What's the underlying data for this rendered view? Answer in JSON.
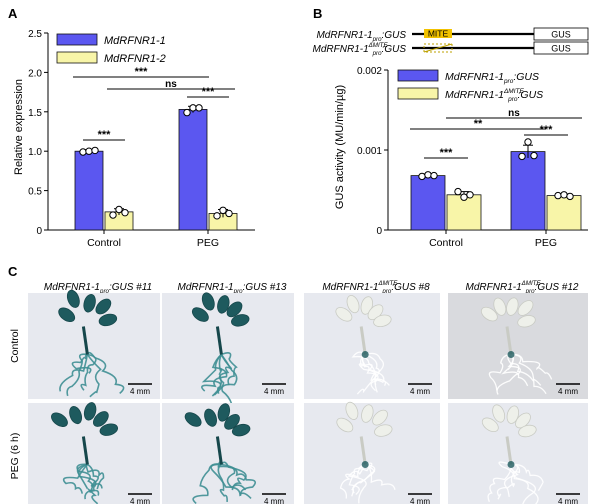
{
  "panels": {
    "a": {
      "label": "A",
      "chart_data": {
        "type": "bar",
        "categories": [
          "Control",
          "PEG"
        ],
        "series": [
          {
            "name": "MdRFNR1-1",
            "values": [
              1.0,
              1.53
            ],
            "errors": [
              0.02,
              0.04
            ],
            "replicates": [
              [
                0.99,
                1.0,
                1.01
              ],
              [
                1.49,
                1.55,
                1.55
              ]
            ]
          },
          {
            "name": "MdRFNR1-2",
            "values": [
              0.23,
              0.21
            ],
            "errors": [
              0.04,
              0.05
            ],
            "replicates": [
              [
                0.19,
                0.26,
                0.22
              ],
              [
                0.18,
                0.25,
                0.21
              ]
            ]
          }
        ],
        "ylabel": "Relative expression",
        "xlabel": "",
        "ylim": [
          0,
          2.5
        ],
        "yticks": [
          "0",
          "0.5",
          "1.0",
          "1.5",
          "2.0",
          "2.5"
        ],
        "legend_position": "top-left",
        "grid": false,
        "significance": [
          {
            "label": "***",
            "between": "Control MdRFNR1-1 vs Control MdRFNR1-2"
          },
          {
            "label": "***",
            "between": "PEG MdRFNR1-1 vs PEG MdRFNR1-2"
          },
          {
            "label": "***",
            "between": "Control MdRFNR1-1 vs PEG MdRFNR1-1"
          },
          {
            "label": "ns",
            "between": "Control MdRFNR1-2 vs PEG MdRFNR1-2"
          }
        ]
      }
    },
    "b": {
      "label": "B",
      "constructs": [
        {
          "name_main": "MdRFNR1-1",
          "sub": "pro",
          "sup": "",
          "suffix": ":GUS",
          "element": "MITE",
          "box": "GUS"
        },
        {
          "name_main": "MdRFNR1-1",
          "sub": "pro",
          "sup": "ΔMITE",
          "suffix": ":GUS",
          "element": "",
          "box": "GUS"
        }
      ],
      "chart_data": {
        "type": "bar",
        "categories": [
          "Control",
          "PEG"
        ],
        "series": [
          {
            "name_main": "MdRFNR1-1",
            "sub": "pro",
            "sup": "",
            "suffix": ":GUS",
            "values": [
              0.00068,
              0.00098
            ],
            "errors": [
              2e-05,
              8e-05
            ],
            "replicates": [
              [
                0.00067,
                0.00069,
                0.00068
              ],
              [
                0.00092,
                0.0011,
                0.00093
              ]
            ]
          },
          {
            "name_main": "MdRFNR1-1",
            "sub": "pro",
            "sup": "ΔMITE",
            "suffix": ":GUS",
            "values": [
              0.00044,
              0.00043
            ],
            "errors": [
              4e-05,
              2e-05
            ],
            "replicates": [
              [
                0.00048,
                0.00041,
                0.00044
              ],
              [
                0.00043,
                0.00044,
                0.00042
              ]
            ]
          }
        ],
        "ylabel": "GUS activity (MU/min/µg)",
        "xlabel": "",
        "ylim": [
          0,
          0.002
        ],
        "yticks": [
          "0",
          "0.001",
          "0.002"
        ],
        "legend_position": "top-left",
        "grid": false,
        "significance": [
          {
            "label": "***",
            "between": "Control pro vs Control ΔMITE"
          },
          {
            "label": "***",
            "between": "PEG pro vs PEG ΔMITE"
          },
          {
            "label": "**",
            "between": "Control pro vs PEG pro"
          },
          {
            "label": "ns",
            "between": "Control ΔMITE vs PEG ΔMITE"
          }
        ]
      }
    },
    "c": {
      "label": "C",
      "columns": [
        {
          "main": "MdRFNR1-1",
          "sub": "pro",
          "sup": "",
          "suffix": ":GUS #11"
        },
        {
          "main": "MdRFNR1-1",
          "sub": "pro",
          "sup": "",
          "suffix": ":GUS #13"
        },
        {
          "main": "MdRFNR1-1",
          "sub": "pro",
          "sup": "ΔMITE",
          "suffix": ":GUS #8"
        },
        {
          "main": "MdRFNR1-1",
          "sub": "pro",
          "sup": "ΔMITE",
          "suffix": ":GUS #12"
        }
      ],
      "rows": [
        "Control",
        "PEG (6 h)"
      ],
      "scale_bar": "4 mm",
      "staining": [
        [
          "strong",
          "strong",
          "weak",
          "weak"
        ],
        [
          "strong",
          "strong",
          "weak",
          "weak"
        ]
      ]
    }
  },
  "colors": {
    "series1": "#5b57f0",
    "series2": "#f8f5a8",
    "photo_bg": "#e7e9ef",
    "photo_bg_alt": "#d9dade",
    "gus_stain": "#1e5a5e",
    "pale_plant": "#eef0ea",
    "mite": "#f2c200"
  }
}
